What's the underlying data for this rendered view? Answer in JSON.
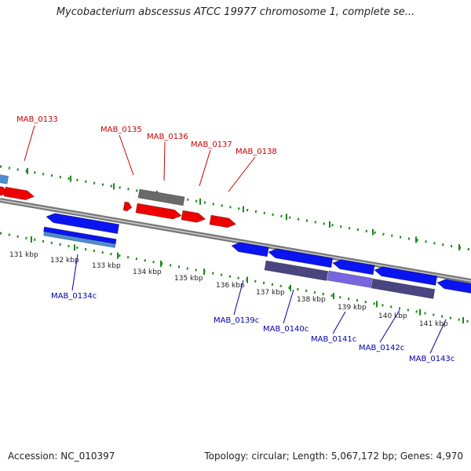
{
  "title": "Mycobacterium abscessus ATCC 19977 chromosome 1, complete se...",
  "footer": {
    "accession": "Accession: NC_010397",
    "summary": "Topology: circular; Length: 5,067,172 bp; Genes: 4,970"
  },
  "colors": {
    "forward_gene": "#ee0000",
    "reverse_gene": "#0a14f0",
    "pseudo_gene": "#6a6a6a",
    "reverse_cds": "#4a4580",
    "reverse_cds_highlight": "#7866e0",
    "cds_light": "#4f8ed0",
    "backbone": "#888888",
    "tick_marks": "#1a8a1a",
    "forward_label": "#cc0000",
    "reverse_label": "#0000aa"
  },
  "scale_labels": [
    "131 kbp",
    "132 kbp",
    "133 kbp",
    "134 kbp",
    "135 kbp",
    "136 kbp",
    "137 kbp",
    "138 kbp",
    "139 kbp",
    "140 kbp",
    "141 kbp"
  ],
  "forward_labels": [
    "MAB_0133",
    "MAB_0135",
    "MAB_0136",
    "MAB_0137",
    "MAB_0138"
  ],
  "reverse_labels": [
    "MAB_0134c",
    "MAB_0139c",
    "MAB_0140c",
    "MAB_0141c",
    "MAB_0142c",
    "MAB_0143c"
  ]
}
